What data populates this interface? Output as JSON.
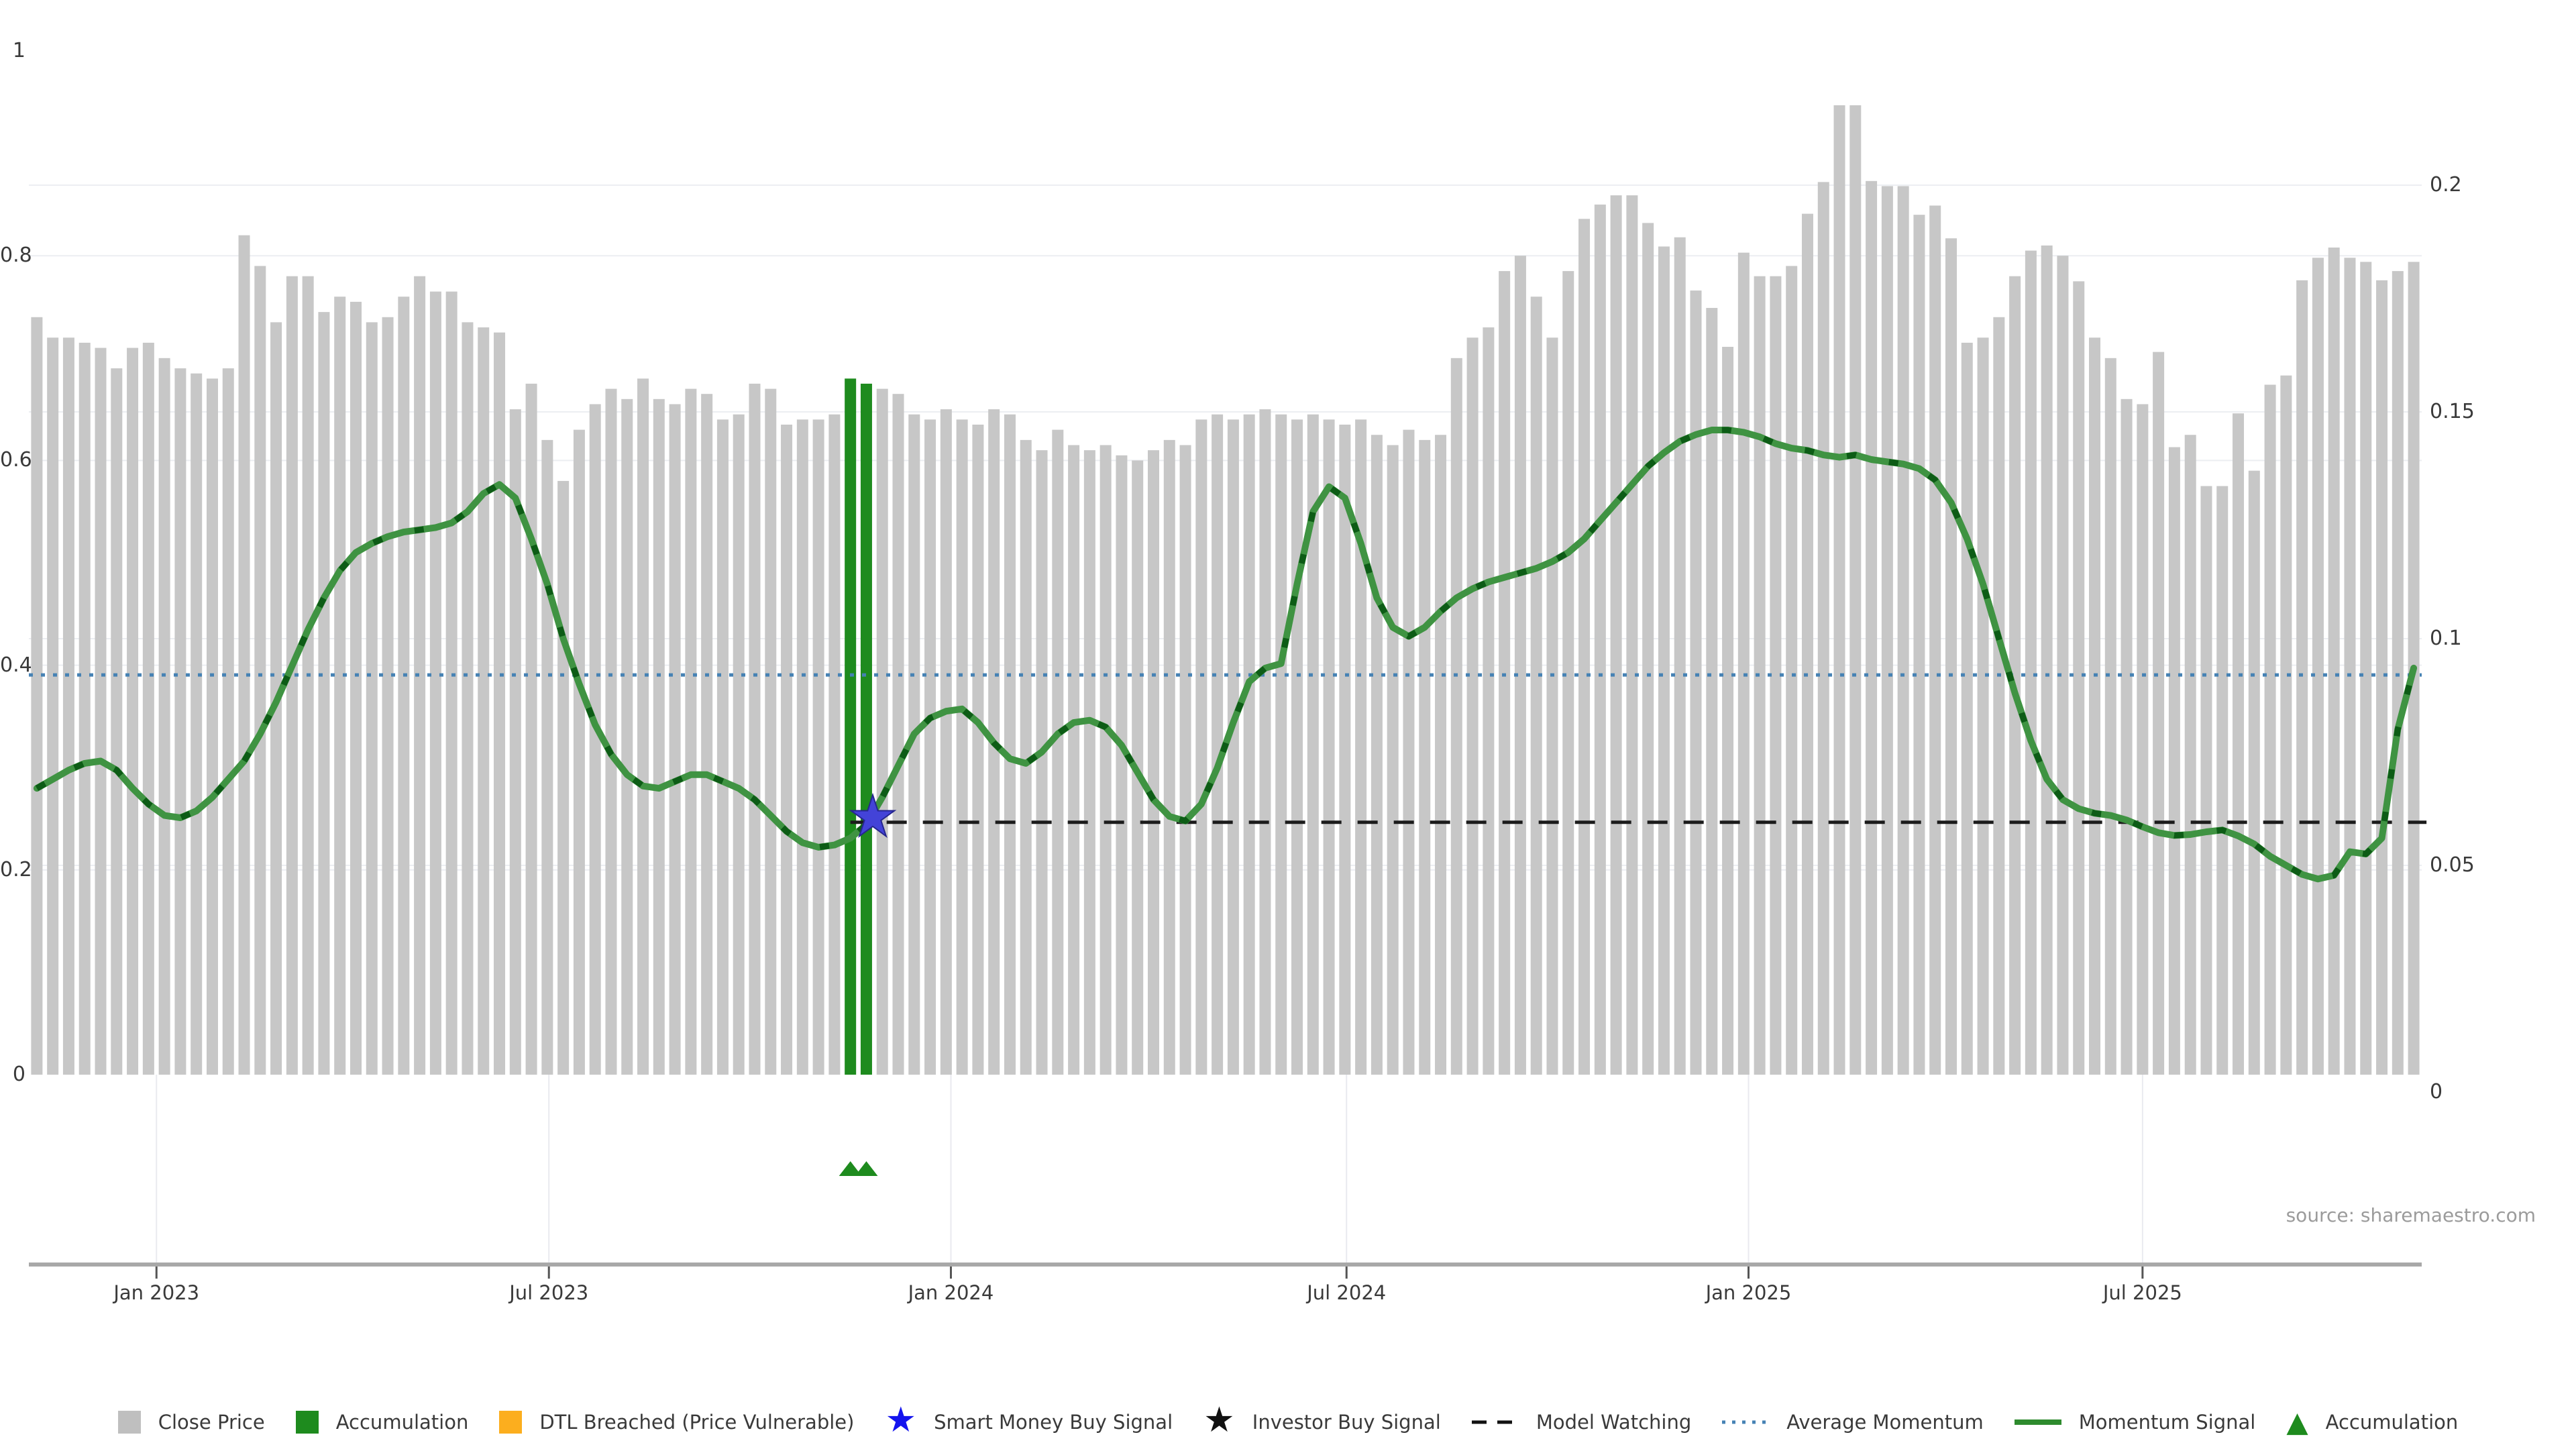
{
  "meta": {
    "source": "source: sharemaestro.com"
  },
  "colors": {
    "bar": "#c7c7c7",
    "accumulation": "#1e8b1e",
    "momentum": "#3f9342",
    "momentum_dash": "#0d5c16",
    "average_momentum": "#4682b4",
    "model_watching": "#1c1c1c",
    "star_fill": "#4343d8",
    "star_edge": "#26268f",
    "grid": "#eceef2",
    "vgrid": "#e9eaef",
    "spine": "#a8a8a8",
    "tick": "#555555",
    "text": "#3a3a3a"
  },
  "chart_data": {
    "type": "combo-bar-line",
    "axes": {
      "left": {
        "labels": [
          "0",
          "0.2",
          "0.4",
          "0.6",
          "0.8",
          "1"
        ],
        "values": [
          0,
          0.2,
          0.4,
          0.6,
          0.8,
          1
        ],
        "range": [
          0,
          1
        ]
      },
      "right": {
        "labels": [
          "0",
          "0.05",
          "0.1",
          "0.15",
          "0.2"
        ],
        "values": [
          0,
          0.05,
          0.1,
          0.15,
          0.2
        ],
        "range": [
          0,
          0.2
        ]
      },
      "x": {
        "tick_labels": [
          "Jan 2023",
          "Jul 2023",
          "Jan 2024",
          "Jul 2024",
          "Jan 2025",
          "Jul 2025"
        ],
        "tick_positions": [
          8.0,
          32.6,
          57.8,
          82.6,
          107.8,
          132.5
        ]
      }
    },
    "series": [
      {
        "name": "Close Price",
        "type": "bar",
        "axis": "left"
      },
      {
        "name": "Momentum Signal",
        "type": "line",
        "axis": "right"
      }
    ],
    "close_price": [
      0.74,
      0.72,
      0.72,
      0.715,
      0.71,
      0.69,
      0.71,
      0.715,
      0.7,
      0.69,
      0.685,
      0.68,
      0.69,
      0.82,
      0.79,
      0.735,
      0.78,
      0.78,
      0.745,
      0.76,
      0.755,
      0.735,
      0.74,
      0.76,
      0.78,
      0.765,
      0.765,
      0.735,
      0.73,
      0.725,
      0.65,
      0.675,
      0.62,
      0.58,
      0.63,
      0.655,
      0.67,
      0.66,
      0.68,
      0.66,
      0.655,
      0.67,
      0.665,
      0.64,
      0.645,
      0.675,
      0.67,
      0.635,
      0.64,
      0.64,
      0.645,
      0.68,
      0.675,
      0.67,
      0.665,
      0.645,
      0.64,
      0.65,
      0.64,
      0.635,
      0.65,
      0.645,
      0.62,
      0.61,
      0.63,
      0.615,
      0.61,
      0.615,
      0.605,
      0.6,
      0.61,
      0.62,
      0.615,
      0.64,
      0.645,
      0.64,
      0.645,
      0.65,
      0.645,
      0.64,
      0.645,
      0.64,
      0.635,
      0.64,
      0.625,
      0.615,
      0.63,
      0.62,
      0.625,
      0.7,
      0.72,
      0.73,
      0.785,
      0.8,
      0.76,
      0.72,
      0.785,
      0.836,
      0.85,
      0.859,
      0.859,
      0.832,
      0.809,
      0.818,
      0.766,
      0.749,
      0.711,
      0.803,
      0.78,
      0.78,
      0.79,
      0.841,
      0.872,
      0.947,
      0.947,
      0.873,
      0.868,
      0.868,
      0.84,
      0.849,
      0.817,
      0.715,
      0.72,
      0.74,
      0.78,
      0.805,
      0.81,
      0.8,
      0.775,
      0.72,
      0.7,
      0.66,
      0.655,
      0.706,
      0.613,
      0.625,
      0.575,
      0.575,
      0.646,
      0.59,
      0.674,
      0.683,
      0.776,
      0.798,
      0.808,
      0.798,
      0.794,
      0.776,
      0.785,
      0.794
    ],
    "momentum_signal": [
      0.067,
      0.069,
      0.071,
      0.0725,
      0.073,
      0.071,
      0.067,
      0.0635,
      0.061,
      0.0605,
      0.062,
      0.065,
      0.069,
      0.073,
      0.079,
      0.086,
      0.094,
      0.102,
      0.109,
      0.115,
      0.119,
      0.121,
      0.1225,
      0.1235,
      0.124,
      0.1245,
      0.1255,
      0.128,
      0.132,
      0.134,
      0.131,
      0.122,
      0.112,
      0.1,
      0.09,
      0.081,
      0.0745,
      0.07,
      0.0675,
      0.067,
      0.0685,
      0.07,
      0.07,
      0.0685,
      0.067,
      0.0645,
      0.061,
      0.0575,
      0.055,
      0.054,
      0.0545,
      0.056,
      0.059,
      0.065,
      0.072,
      0.079,
      0.0825,
      0.084,
      0.0845,
      0.0815,
      0.077,
      0.0735,
      0.0725,
      0.075,
      0.079,
      0.0815,
      0.082,
      0.0805,
      0.0765,
      0.0705,
      0.0645,
      0.0608,
      0.0598,
      0.0635,
      0.0715,
      0.0815,
      0.0905,
      0.0935,
      0.0945,
      0.112,
      0.128,
      0.1335,
      0.131,
      0.121,
      0.109,
      0.1025,
      0.1005,
      0.1025,
      0.106,
      0.109,
      0.111,
      0.1125,
      0.1135,
      0.1145,
      0.1155,
      0.117,
      0.119,
      0.122,
      0.126,
      0.13,
      0.134,
      0.138,
      0.141,
      0.1435,
      0.145,
      0.146,
      0.146,
      0.1455,
      0.1445,
      0.143,
      0.142,
      0.1415,
      0.1405,
      0.14,
      0.1405,
      0.1395,
      0.139,
      0.1385,
      0.1375,
      0.135,
      0.13,
      0.122,
      0.112,
      0.1,
      0.088,
      0.0775,
      0.069,
      0.0645,
      0.0625,
      0.0615,
      0.061,
      0.06,
      0.0585,
      0.0572,
      0.0566,
      0.0568,
      0.0574,
      0.0578,
      0.0565,
      0.0547,
      0.052,
      0.05,
      0.048,
      0.047,
      0.0478,
      0.053,
      0.0525,
      0.056,
      0.08,
      0.0935
    ],
    "accumulation_bar_indices": [
      51,
      52
    ],
    "accumulation_marker_indices": [
      51,
      52
    ],
    "average_momentum_value": 0.092,
    "model_watching": {
      "value": 0.0595,
      "start_position": 51.0,
      "end_position": 149.8
    },
    "smart_money_buy_signal": {
      "position": 52.4,
      "value": 0.0605
    }
  },
  "legend": {
    "items": [
      {
        "marker": "square",
        "color": "#bfbfbf",
        "label": "Close Price"
      },
      {
        "marker": "square",
        "color": "#1e8b1e",
        "label": "Accumulation"
      },
      {
        "marker": "square",
        "color": "#fcae1e",
        "label": "DTL Breached (Price Vulnerable)"
      },
      {
        "marker": "star",
        "color": "#1414ee",
        "label": "Smart Money Buy Signal"
      },
      {
        "marker": "star",
        "color": "#111111",
        "label": "Investor Buy Signal"
      },
      {
        "marker": "dash-line",
        "color": "#111111",
        "label": "Model Watching"
      },
      {
        "marker": "dot-line",
        "color": "#4682b4",
        "label": "Average Momentum"
      },
      {
        "marker": "solid-line",
        "color": "#2e8b2e",
        "label": "Momentum Signal"
      },
      {
        "marker": "triangle",
        "color": "#1e8b1e",
        "label": "Accumulation"
      }
    ]
  }
}
